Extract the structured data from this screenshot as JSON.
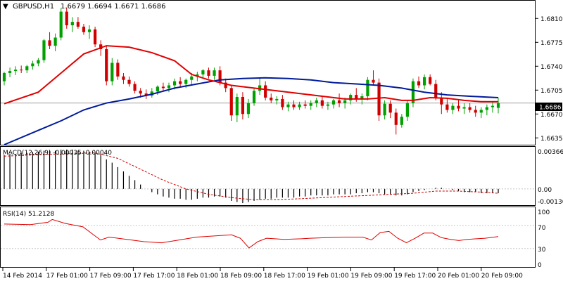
{
  "header": {
    "symbol": "GBPUSD,H1",
    "quote": "1.6679 1.6694 1.6671 1.6686"
  },
  "macd": {
    "label": "MACD(12,26,9) -0.00035 -0.00040",
    "axis": [
      "0.00366",
      "0.00",
      "-0.00136"
    ]
  },
  "rsi": {
    "label": "RSI(14) 51.2128",
    "axis": [
      "100",
      "70",
      "30",
      "0"
    ]
  },
  "colors": {
    "bull": "#00a000",
    "bear": "#d00000",
    "ma_fast": "#e00000",
    "ma_slow": "#001a9a",
    "grid": "#c8c8c8"
  },
  "chart_data": {
    "type": "candlestick",
    "price_axis": {
      "ticks": [
        "1.6810",
        "1.6775",
        "1.6740",
        "1.6705",
        "1.6670",
        "1.6635"
      ],
      "range": [
        1.6625,
        1.6835
      ],
      "current": "1.6686"
    },
    "time_labels": [
      "14 Feb 2014",
      "17 Feb 01:00",
      "17 Feb 09:00",
      "17 Feb 17:00",
      "18 Feb 01:00",
      "18 Feb 09:00",
      "18 Feb 17:00",
      "19 Feb 01:00",
      "19 Feb 09:00",
      "19 Feb 17:00",
      "20 Feb 01:00",
      "20 Feb 09:00"
    ],
    "candles": [
      [
        1.6718,
        1.6732,
        1.6712,
        1.673
      ],
      [
        1.673,
        1.6738,
        1.6724,
        1.6733
      ],
      [
        1.6733,
        1.674,
        1.6727,
        1.6735
      ],
      [
        1.6735,
        1.6741,
        1.673,
        1.6734
      ],
      [
        1.6734,
        1.6742,
        1.673,
        1.674
      ],
      [
        1.674,
        1.6748,
        1.6735,
        1.6744
      ],
      [
        1.6744,
        1.6752,
        1.674,
        1.6749
      ],
      [
        1.6749,
        1.678,
        1.6745,
        1.6778
      ],
      [
        1.6778,
        1.679,
        1.6765,
        1.677
      ],
      [
        1.677,
        1.6788,
        1.6762,
        1.6782
      ],
      [
        1.6782,
        1.6825,
        1.6778,
        1.682
      ],
      [
        1.682,
        1.6826,
        1.6795,
        1.68
      ],
      [
        1.68,
        1.6812,
        1.679,
        1.6805
      ],
      [
        1.6805,
        1.6812,
        1.6795,
        1.6798
      ],
      [
        1.6798,
        1.6802,
        1.6786,
        1.679
      ],
      [
        1.679,
        1.68,
        1.678,
        1.6794
      ],
      [
        1.6794,
        1.6798,
        1.6768,
        1.6772
      ],
      [
        1.6772,
        1.6778,
        1.6755,
        1.6765
      ],
      [
        1.6765,
        1.677,
        1.6712,
        1.6718
      ],
      [
        1.6718,
        1.6752,
        1.6712,
        1.6745
      ],
      [
        1.6745,
        1.675,
        1.672,
        1.6725
      ],
      [
        1.6725,
        1.673,
        1.6714,
        1.672
      ],
      [
        1.672,
        1.6725,
        1.671,
        1.6714
      ],
      [
        1.6714,
        1.6718,
        1.67,
        1.6704
      ],
      [
        1.6704,
        1.6708,
        1.6694,
        1.67
      ],
      [
        1.67,
        1.6706,
        1.6692,
        1.6697
      ],
      [
        1.6697,
        1.6708,
        1.6694,
        1.6703
      ],
      [
        1.6703,
        1.6712,
        1.6698,
        1.671
      ],
      [
        1.671,
        1.6716,
        1.6704,
        1.6708
      ],
      [
        1.6708,
        1.6716,
        1.6702,
        1.6712
      ],
      [
        1.6712,
        1.6722,
        1.6706,
        1.6718
      ],
      [
        1.6718,
        1.6724,
        1.671,
        1.6714
      ],
      [
        1.6714,
        1.6722,
        1.6708,
        1.672
      ],
      [
        1.672,
        1.673,
        1.6712,
        1.6725
      ],
      [
        1.6725,
        1.6732,
        1.6718,
        1.6728
      ],
      [
        1.6728,
        1.6736,
        1.6722,
        1.6734
      ],
      [
        1.6734,
        1.6738,
        1.6722,
        1.6726
      ],
      [
        1.6726,
        1.6738,
        1.672,
        1.6734
      ],
      [
        1.6734,
        1.674,
        1.6712,
        1.6716
      ],
      [
        1.6716,
        1.6722,
        1.6702,
        1.6708
      ],
      [
        1.6708,
        1.6712,
        1.666,
        1.6668
      ],
      [
        1.6668,
        1.67,
        1.6658,
        1.6695
      ],
      [
        1.6695,
        1.6702,
        1.6662,
        1.667
      ],
      [
        1.667,
        1.6692,
        1.6664,
        1.6686
      ],
      [
        1.6686,
        1.6708,
        1.6682,
        1.6704
      ],
      [
        1.6704,
        1.6722,
        1.6698,
        1.6712
      ],
      [
        1.6712,
        1.6718,
        1.669,
        1.6694
      ],
      [
        1.6694,
        1.67,
        1.6686,
        1.669
      ],
      [
        1.669,
        1.6696,
        1.6684,
        1.6692
      ],
      [
        1.6692,
        1.6698,
        1.6676,
        1.668
      ],
      [
        1.668,
        1.6688,
        1.6674,
        1.6684
      ],
      [
        1.6684,
        1.669,
        1.6676,
        1.668
      ],
      [
        1.668,
        1.6688,
        1.6676,
        1.6684
      ],
      [
        1.6684,
        1.669,
        1.6678,
        1.6682
      ],
      [
        1.6682,
        1.669,
        1.6676,
        1.6686
      ],
      [
        1.6686,
        1.6694,
        1.668,
        1.669
      ],
      [
        1.669,
        1.6696,
        1.6678,
        1.6682
      ],
      [
        1.6682,
        1.6688,
        1.6676,
        1.6684
      ],
      [
        1.6684,
        1.6692,
        1.6678,
        1.669
      ],
      [
        1.669,
        1.67,
        1.668,
        1.6686
      ],
      [
        1.6686,
        1.6694,
        1.6678,
        1.669
      ],
      [
        1.669,
        1.67,
        1.6684,
        1.6698
      ],
      [
        1.6698,
        1.6708,
        1.6688,
        1.6692
      ],
      [
        1.6692,
        1.67,
        1.6684,
        1.6696
      ],
      [
        1.6696,
        1.6724,
        1.669,
        1.672
      ],
      [
        1.672,
        1.6734,
        1.6712,
        1.6716
      ],
      [
        1.6716,
        1.6722,
        1.666,
        1.6668
      ],
      [
        1.6668,
        1.669,
        1.6662,
        1.6685
      ],
      [
        1.6685,
        1.669,
        1.6664,
        1.6672
      ],
      [
        1.6672,
        1.6678,
        1.664,
        1.6654
      ],
      [
        1.6654,
        1.667,
        1.665,
        1.6666
      ],
      [
        1.6666,
        1.669,
        1.666,
        1.6686
      ],
      [
        1.6686,
        1.6722,
        1.668,
        1.6718
      ],
      [
        1.6718,
        1.6725,
        1.6708,
        1.6712
      ],
      [
        1.6712,
        1.6728,
        1.6706,
        1.6724
      ],
      [
        1.6724,
        1.6728,
        1.6712,
        1.6714
      ],
      [
        1.6714,
        1.672,
        1.669,
        1.6694
      ],
      [
        1.6694,
        1.6702,
        1.667,
        1.6684
      ],
      [
        1.6684,
        1.6694,
        1.6672,
        1.6676
      ],
      [
        1.6676,
        1.6686,
        1.667,
        1.6682
      ],
      [
        1.6682,
        1.669,
        1.6674,
        1.6678
      ],
      [
        1.6678,
        1.6686,
        1.667,
        1.668
      ],
      [
        1.668,
        1.6686,
        1.6672,
        1.6676
      ],
      [
        1.6676,
        1.6682,
        1.6666,
        1.6672
      ],
      [
        1.6672,
        1.668,
        1.6664,
        1.6676
      ],
      [
        1.6676,
        1.6684,
        1.6668,
        1.668
      ],
      [
        1.668,
        1.6688,
        1.6672,
        1.6682
      ],
      [
        1.6679,
        1.6694,
        1.6671,
        1.6686
      ]
    ],
    "ma_fast": [
      [
        0,
        1.6685
      ],
      [
        6,
        1.6702
      ],
      [
        10,
        1.673
      ],
      [
        14,
        1.6758
      ],
      [
        18,
        1.677
      ],
      [
        22,
        1.6768
      ],
      [
        26,
        1.676
      ],
      [
        30,
        1.6748
      ],
      [
        33,
        1.6728
      ],
      [
        36,
        1.672
      ],
      [
        40,
        1.6712
      ],
      [
        44,
        1.6708
      ],
      [
        48,
        1.6704
      ],
      [
        52,
        1.67
      ],
      [
        56,
        1.6696
      ],
      [
        60,
        1.6692
      ],
      [
        64,
        1.6692
      ],
      [
        67,
        1.6694
      ],
      [
        70,
        1.669
      ],
      [
        72,
        1.669
      ],
      [
        75,
        1.6694
      ],
      [
        78,
        1.6693
      ],
      [
        81,
        1.669
      ],
      [
        84,
        1.6688
      ],
      [
        87,
        1.6688
      ]
    ],
    "ma_slow": [
      [
        0,
        1.6625
      ],
      [
        6,
        1.6646
      ],
      [
        10,
        1.666
      ],
      [
        14,
        1.6676
      ],
      [
        18,
        1.6686
      ],
      [
        22,
        1.6692
      ],
      [
        26,
        1.6699
      ],
      [
        30,
        1.6708
      ],
      [
        34,
        1.6714
      ],
      [
        38,
        1.672
      ],
      [
        42,
        1.6722
      ],
      [
        46,
        1.6723
      ],
      [
        50,
        1.6722
      ],
      [
        54,
        1.672
      ],
      [
        58,
        1.6716
      ],
      [
        62,
        1.6714
      ],
      [
        66,
        1.6712
      ],
      [
        70,
        1.6708
      ],
      [
        74,
        1.6702
      ],
      [
        78,
        1.6698
      ],
      [
        82,
        1.6696
      ],
      [
        87,
        1.6694
      ]
    ],
    "macd_hist": [
      0.0031,
      0.0032,
      0.0032,
      0.0033,
      0.0033,
      0.0034,
      0.0034,
      0.0035,
      0.0035,
      0.0035,
      0.0036,
      0.0036,
      0.0036,
      0.0035,
      0.0035,
      0.0034,
      0.0033,
      0.0031,
      0.0027,
      0.0024,
      0.002,
      0.0016,
      0.0012,
      0.0008,
      0.0004,
      0.0,
      -0.0003,
      -0.0005,
      -0.0007,
      -0.0008,
      -0.0009,
      -0.0009,
      -0.001,
      -0.001,
      -0.0009,
      -0.0008,
      -0.0008,
      -0.0007,
      -0.0007,
      -0.0008,
      -0.0011,
      -0.0012,
      -0.0013,
      -0.0012,
      -0.0011,
      -0.001,
      -0.0009,
      -0.0009,
      -0.0008,
      -0.0008,
      -0.0008,
      -0.0008,
      -0.0007,
      -0.0007,
      -0.0006,
      -0.0006,
      -0.0006,
      -0.0006,
      -0.0005,
      -0.0005,
      -0.0005,
      -0.0005,
      -0.0004,
      -0.0004,
      -0.0003,
      -0.0003,
      -0.0004,
      -0.0005,
      -0.0005,
      -0.0006,
      -0.0006,
      -0.0005,
      -0.0003,
      -0.0002,
      -0.0001,
      0.0,
      0.0001,
      0.0001,
      0.0,
      -0.0001,
      -0.0002,
      -0.0003,
      -0.0003,
      -0.0003,
      -0.0004,
      -0.0004,
      -0.0004,
      -0.0004
    ],
    "macd_signal": [
      [
        0,
        0.003
      ],
      [
        10,
        0.0032
      ],
      [
        16,
        0.0033
      ],
      [
        20,
        0.0028
      ],
      [
        24,
        0.0018
      ],
      [
        28,
        0.0008
      ],
      [
        32,
        0.0
      ],
      [
        36,
        -0.0005
      ],
      [
        40,
        -0.0008
      ],
      [
        44,
        -0.001
      ],
      [
        48,
        -0.001
      ],
      [
        52,
        -0.0009
      ],
      [
        56,
        -0.0008
      ],
      [
        60,
        -0.0007
      ],
      [
        64,
        -0.0006
      ],
      [
        68,
        -0.0005
      ],
      [
        72,
        -0.0004
      ],
      [
        76,
        -0.0002
      ],
      [
        80,
        -0.0002
      ],
      [
        84,
        -0.0003
      ],
      [
        87,
        -0.0004
      ]
    ],
    "rsi_values": [
      [
        0,
        73
      ],
      [
        6,
        72
      ],
      [
        10,
        76
      ],
      [
        11,
        81
      ],
      [
        14,
        74
      ],
      [
        18,
        68
      ],
      [
        22,
        45
      ],
      [
        24,
        50
      ],
      [
        28,
        46
      ],
      [
        32,
        42
      ],
      [
        36,
        40
      ],
      [
        40,
        45
      ],
      [
        44,
        50
      ],
      [
        48,
        52
      ],
      [
        52,
        54
      ],
      [
        54,
        48
      ],
      [
        56,
        31
      ],
      [
        58,
        42
      ],
      [
        60,
        48
      ],
      [
        64,
        46
      ],
      [
        68,
        47
      ],
      [
        70,
        48
      ],
      [
        74,
        49
      ],
      [
        78,
        50
      ],
      [
        82,
        50
      ],
      [
        84,
        45
      ],
      [
        86,
        58
      ],
      [
        88,
        60
      ],
      [
        90,
        48
      ],
      [
        92,
        40
      ],
      [
        94,
        48
      ],
      [
        96,
        57
      ],
      [
        98,
        57
      ],
      [
        100,
        49
      ],
      [
        102,
        46
      ],
      [
        104,
        44
      ],
      [
        106,
        46
      ],
      [
        108,
        47
      ],
      [
        110,
        48
      ],
      [
        113,
        51
      ]
    ],
    "rsi_scale": [
      0,
      100
    ],
    "rsi_levels": [
      70,
      30
    ]
  }
}
